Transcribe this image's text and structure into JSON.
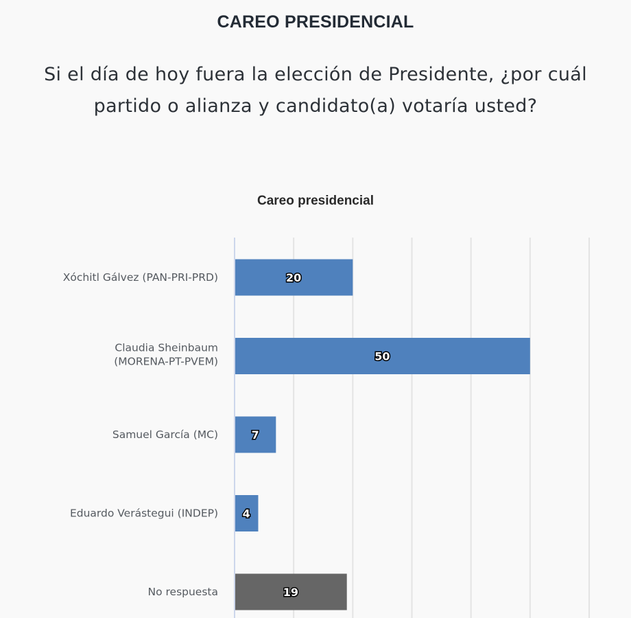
{
  "header": {
    "title": "CAREO PRESIDENCIAL",
    "question": "Si el día de hoy fuera la elección de Presidente, ¿por cuál partido o alianza y candidato(a) votaría usted?"
  },
  "chart_data": {
    "type": "bar",
    "orientation": "horizontal",
    "title": "Careo presidencial",
    "xlabel": "",
    "ylabel": "",
    "xlim": [
      0,
      60
    ],
    "grid": true,
    "categories": [
      [
        "Xóchitl Gálvez (PAN-PRI-PRD)"
      ],
      [
        "Claudia Sheinbaum",
        "(MORENA-PT-PVEM)"
      ],
      [
        "Samuel García (MC)"
      ],
      [
        "Eduardo Verástegui (INDEP)"
      ],
      [
        "No respuesta"
      ]
    ],
    "values": [
      20,
      50,
      7,
      4,
      19
    ],
    "colors": [
      "#4f81bd",
      "#4f81bd",
      "#4f81bd",
      "#4f81bd",
      "#666666"
    ],
    "data_labels": [
      "20",
      "50",
      "7",
      "4",
      "19"
    ]
  }
}
